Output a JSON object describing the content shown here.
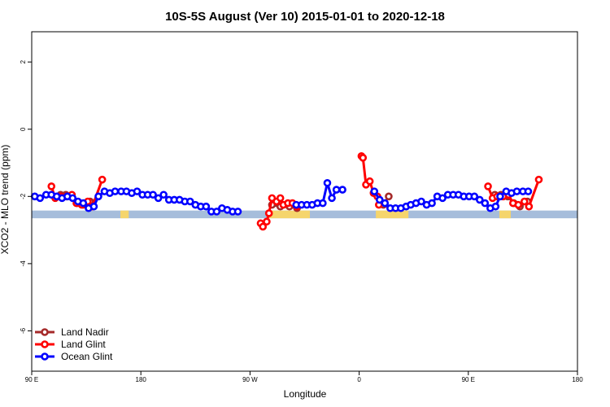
{
  "chart_data": {
    "type": "line",
    "title": "10S-5S August (Ver 10)   2015-01-01 to 2020-12-18",
    "xlabel": "Longitude",
    "ylabel": "XCO2 - MLO trend (ppm)",
    "xlim": [
      90,
      450
    ],
    "ylim": [
      -7.2,
      2.9
    ],
    "x_ticks": [
      {
        "value": 90,
        "label": "90 E"
      },
      {
        "value": 162,
        "label": "180"
      },
      {
        "value": 234,
        "label": "90 W"
      },
      {
        "value": 306,
        "label": "0"
      },
      {
        "value": 378,
        "label": "90 E"
      },
      {
        "value": 450,
        "label": "180"
      }
    ],
    "y_ticks": [
      {
        "value": 2,
        "label": "2"
      },
      {
        "value": 0,
        "label": "0"
      },
      {
        "value": -2,
        "label": "-2"
      },
      {
        "value": -4,
        "label": "-4"
      },
      {
        "value": -6,
        "label": "-6"
      }
    ],
    "grid": false,
    "legend_position": "bottom-left",
    "band": {
      "y_top": -2.42,
      "y_bottom": -2.65,
      "color": "#a6bddb",
      "land_color": "#f5d56c"
    },
    "land_segments": [
      [
        148.5,
        154.0
      ],
      [
        246.0,
        273.5
      ],
      [
        317.0,
        338.5
      ],
      [
        398.5,
        406.0
      ]
    ],
    "series": [
      {
        "name": "Land Nadir",
        "color": "#a52a2a",
        "points": [
          [
            109.0,
            -1.95
          ],
          [
            112.5,
            -1.95
          ],
          [
            116.0,
            -2.0
          ],
          [
            120.0,
            -2.2
          ],
          [
            124.0,
            -2.25
          ],
          [
            128.5,
            -2.15
          ],
          [
            248.5,
            -2.25
          ],
          [
            254.0,
            -2.3
          ],
          [
            260.0,
            -2.3
          ],
          [
            265.0,
            -2.35
          ],
          [
            322.0,
            -2.25
          ],
          [
            325.5,
            -2.0
          ],
          [
            395.5,
            -1.95
          ],
          [
            399.5,
            -1.95
          ],
          [
            404.0,
            -2.0
          ],
          [
            408.0,
            -2.2
          ],
          [
            412.0,
            -2.3
          ],
          [
            417.0,
            -2.15
          ]
        ]
      },
      {
        "name": "Land Glint",
        "color": "#ff0000",
        "points": [
          [
            103.0,
            -1.7
          ],
          [
            105.5,
            -2.05
          ],
          [
            109.0,
            -2.0
          ],
          [
            113.0,
            -2.0
          ],
          [
            116.5,
            -1.95
          ],
          [
            119.5,
            -2.2
          ],
          [
            123.0,
            -2.25
          ],
          [
            127.0,
            -2.15
          ],
          [
            130.0,
            -2.3
          ],
          [
            136.5,
            -1.5
          ],
          [
            241.0,
            -2.8
          ],
          [
            242.5,
            -2.9
          ],
          [
            245.0,
            -2.75
          ],
          [
            246.5,
            -2.5
          ],
          [
            248.5,
            -2.05
          ],
          [
            251.5,
            -2.15
          ],
          [
            254.0,
            -2.05
          ],
          [
            256.0,
            -2.25
          ],
          [
            259.0,
            -2.2
          ],
          [
            262.0,
            -2.2
          ],
          [
            265.0,
            -2.3
          ],
          [
            307.5,
            -0.8
          ],
          [
            308.5,
            -0.85
          ],
          [
            310.5,
            -1.65
          ],
          [
            313.0,
            -1.55
          ],
          [
            315.5,
            -1.9
          ],
          [
            318.0,
            -2.0
          ],
          [
            319.0,
            -2.25
          ],
          [
            391.0,
            -1.7
          ],
          [
            394.0,
            -2.05
          ],
          [
            397.0,
            -2.0
          ],
          [
            401.0,
            -2.0
          ],
          [
            404.5,
            -1.95
          ],
          [
            407.5,
            -2.2
          ],
          [
            411.0,
            -2.25
          ],
          [
            415.0,
            -2.15
          ],
          [
            418.0,
            -2.3
          ],
          [
            424.5,
            -1.5
          ]
        ]
      },
      {
        "name": "Ocean Glint",
        "color": "#0000ff",
        "points": [
          [
            92.0,
            -2.0
          ],
          [
            95.5,
            -2.05
          ],
          [
            99.5,
            -1.95
          ],
          [
            103.0,
            -1.95
          ],
          [
            106.5,
            -2.0
          ],
          [
            110.0,
            -2.05
          ],
          [
            113.5,
            -2.0
          ],
          [
            117.0,
            -2.05
          ],
          [
            120.5,
            -2.15
          ],
          [
            124.0,
            -2.2
          ],
          [
            127.5,
            -2.35
          ],
          [
            131.0,
            -2.3
          ],
          [
            134.0,
            -2.0
          ],
          [
            138.0,
            -1.85
          ],
          [
            141.5,
            -1.9
          ],
          [
            145.0,
            -1.85
          ],
          [
            149.0,
            -1.85
          ],
          [
            152.5,
            -1.85
          ],
          [
            156.0,
            -1.9
          ],
          [
            159.5,
            -1.85
          ],
          [
            163.0,
            -1.95
          ],
          [
            166.5,
            -1.95
          ],
          [
            170.0,
            -1.95
          ],
          [
            173.5,
            -2.05
          ],
          [
            177.0,
            -1.95
          ],
          [
            180.5,
            -2.1
          ],
          [
            184.0,
            -2.1
          ],
          [
            187.5,
            -2.1
          ],
          [
            191.0,
            -2.15
          ],
          [
            194.5,
            -2.15
          ],
          [
            198.0,
            -2.25
          ],
          [
            201.5,
            -2.3
          ],
          [
            205.0,
            -2.3
          ],
          [
            208.5,
            -2.45
          ],
          [
            212.0,
            -2.45
          ],
          [
            215.5,
            -2.35
          ],
          [
            219.0,
            -2.4
          ],
          [
            222.5,
            -2.45
          ],
          [
            226.0,
            -2.45
          ],
          [
            264.5,
            -2.25
          ],
          [
            268.0,
            -2.25
          ],
          [
            271.5,
            -2.25
          ],
          [
            275.0,
            -2.25
          ],
          [
            278.5,
            -2.2
          ],
          [
            282.0,
            -2.2
          ],
          [
            285.0,
            -1.6
          ],
          [
            288.0,
            -2.05
          ],
          [
            291.0,
            -1.8
          ],
          [
            295.0,
            -1.8
          ],
          [
            316.0,
            -1.85
          ],
          [
            319.5,
            -2.1
          ],
          [
            323.0,
            -2.2
          ],
          [
            326.5,
            -2.35
          ],
          [
            330.0,
            -2.35
          ],
          [
            333.5,
            -2.35
          ],
          [
            337.0,
            -2.3
          ],
          [
            340.0,
            -2.25
          ],
          [
            343.5,
            -2.2
          ],
          [
            347.0,
            -2.15
          ],
          [
            350.5,
            -2.25
          ],
          [
            354.0,
            -2.2
          ],
          [
            357.5,
            -2.0
          ],
          [
            361.0,
            -2.05
          ],
          [
            364.5,
            -1.95
          ],
          [
            368.0,
            -1.95
          ],
          [
            371.5,
            -1.95
          ],
          [
            375.0,
            -2.0
          ],
          [
            378.5,
            -2.0
          ],
          [
            382.0,
            -2.0
          ],
          [
            385.5,
            -2.1
          ],
          [
            389.0,
            -2.2
          ],
          [
            392.5,
            -2.35
          ],
          [
            396.0,
            -2.3
          ],
          [
            399.0,
            -2.0
          ],
          [
            403.0,
            -1.85
          ],
          [
            406.5,
            -1.9
          ],
          [
            410.0,
            -1.85
          ],
          [
            414.0,
            -1.85
          ],
          [
            417.5,
            -1.85
          ]
        ]
      }
    ]
  }
}
